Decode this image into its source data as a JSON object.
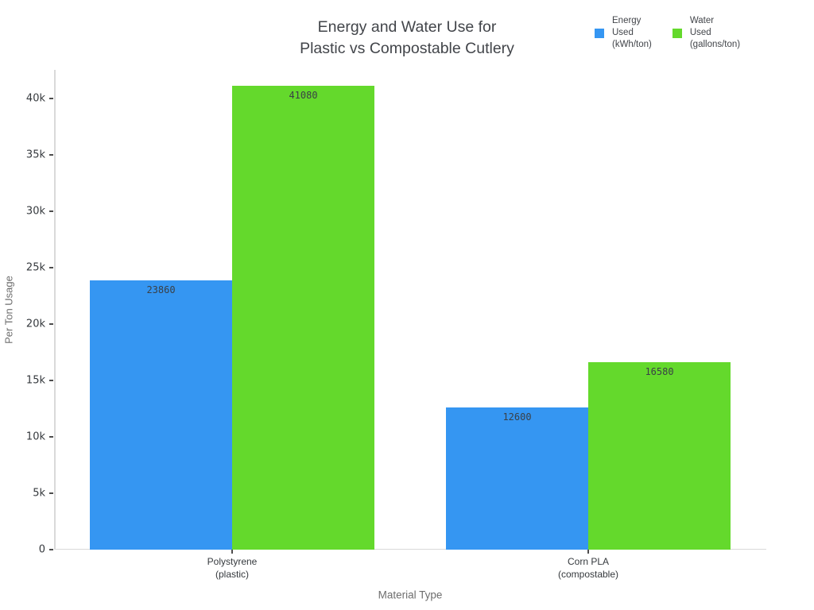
{
  "chart_data": {
    "type": "bar",
    "title": "Energy and Water Use for\nPlastic vs Compostable Cutlery",
    "xlabel": "Material Type",
    "ylabel": "Per Ton Usage",
    "categories": [
      "Polystyrene\n(plastic)",
      "Corn PLA\n(compostable)"
    ],
    "series": [
      {
        "name": "Energy Used (kWh/ton)",
        "legend_label": "Energy\nUsed\n(kWh/ton)",
        "color": "#3596f2",
        "values": [
          23860,
          12600
        ]
      },
      {
        "name": "Water Used (gallons/ton)",
        "legend_label": "Water\nUsed\n(gallons/ton)",
        "color": "#64d92c",
        "values": [
          41080,
          16580
        ]
      }
    ],
    "bar_value_labels": [
      "23860",
      "41080",
      "12600",
      "16580"
    ],
    "ylim": [
      0,
      42500
    ],
    "yticks": [
      0,
      5000,
      10000,
      15000,
      20000,
      25000,
      30000,
      35000,
      40000
    ],
    "ytick_labels": [
      "0",
      "5k",
      "10k",
      "15k",
      "20k",
      "25k",
      "30k",
      "35k",
      "40k"
    ],
    "grid": false,
    "legend_position": "top-right"
  },
  "colors": {
    "axis_line": "#d9d9d9",
    "tick_mark": "#4d4d4d",
    "tick_label": "#35393d",
    "title_text": "#42454a",
    "axis_title_text": "#6e6e6e",
    "value_label_text": "#3a4046",
    "background": "#ffffff"
  }
}
